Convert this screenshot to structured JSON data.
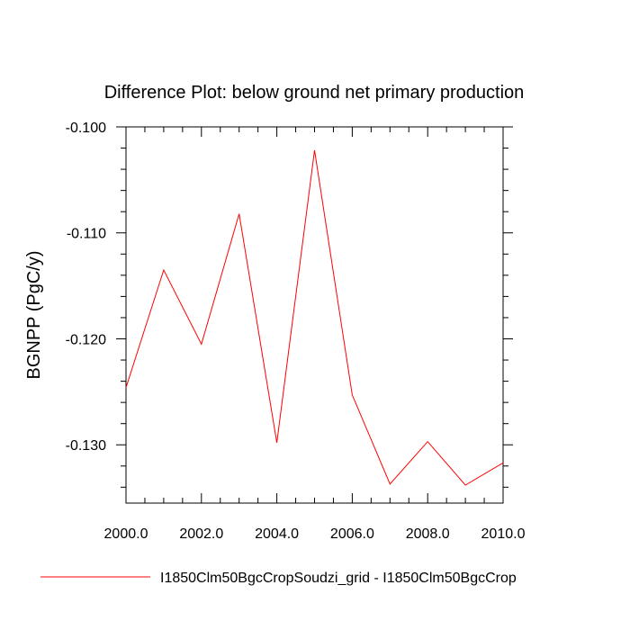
{
  "chart_data": {
    "type": "line",
    "title": "Difference Plot: below ground net primary production",
    "xlabel": "",
    "ylabel": "BGNPP  (PgC/y)",
    "xlim": [
      2000,
      2010
    ],
    "ylim": [
      -0.1355,
      -0.1
    ],
    "x_ticks": [
      2000,
      2002,
      2004,
      2006,
      2008,
      2010
    ],
    "x_tick_labels": [
      "2000.0",
      "2002.0",
      "2004.0",
      "2006.0",
      "2008.0",
      "2010.0"
    ],
    "y_ticks": [
      -0.1,
      -0.11,
      -0.12,
      -0.13
    ],
    "y_tick_labels": [
      "-0.100",
      "-0.110",
      "-0.120",
      "-0.130"
    ],
    "grid": false,
    "legend_position": "bottom",
    "series": [
      {
        "name": "I1850Clm50BgcCropSoudzi_grid - I1850Clm50BgcCrop",
        "color": "#ff0000",
        "x": [
          2000,
          2001,
          2002,
          2003,
          2004,
          2005,
          2006,
          2007,
          2008,
          2009,
          2010
        ],
        "y": [
          -0.1246,
          -0.1135,
          -0.1205,
          -0.1082,
          -0.1298,
          -0.1022,
          -0.1253,
          -0.1337,
          -0.1297,
          -0.1338,
          -0.1317
        ]
      }
    ]
  }
}
